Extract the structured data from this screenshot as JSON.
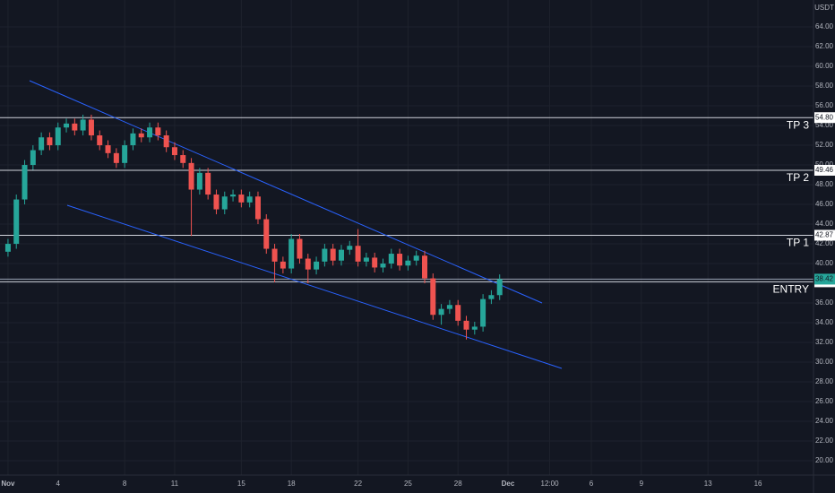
{
  "chart_data": {
    "type": "candlestick",
    "y_axis_label": "USDT",
    "x": [
      0,
      0.5,
      1,
      1.5,
      2,
      2.5,
      3,
      3.5,
      4,
      4.5,
      5,
      5.5,
      6,
      6.5,
      7,
      7.5,
      8,
      8.5,
      9,
      9.5,
      10,
      10.5,
      11,
      11.5,
      12,
      12.5,
      13,
      13.5,
      14,
      14.5,
      15,
      15.5,
      16,
      16.5,
      17,
      17.5,
      18,
      18.5,
      19,
      19.5,
      20,
      20.5,
      21,
      21.5,
      22,
      22.5,
      23,
      23.5,
      24,
      24.5,
      25,
      25.5,
      26,
      26.5,
      27,
      27.5,
      28,
      28.5,
      29,
      29.5
    ],
    "open": [
      41.2,
      42.0,
      46.5,
      50.0,
      51.5,
      52.8,
      52.0,
      53.8,
      54.2,
      53.5,
      54.6,
      53.0,
      52.0,
      51.2,
      50.2,
      52.0,
      53.2,
      52.8,
      53.8,
      53.0,
      51.8,
      51.0,
      50.2,
      47.5,
      49.2,
      47.0,
      45.5,
      46.8,
      47.0,
      46.2,
      46.8,
      44.5,
      41.5,
      40.2,
      39.5,
      42.5,
      40.5,
      39.4,
      40.2,
      41.5,
      40.3,
      41.4,
      41.8,
      40.2,
      40.6,
      39.6,
      40.0,
      41.0,
      39.8,
      40.3,
      40.8,
      38.5,
      34.8,
      35.4,
      35.8,
      34.2,
      33.3,
      33.6,
      36.4,
      36.8
    ],
    "high": [
      42.5,
      47.0,
      50.5,
      52.0,
      53.3,
      53.3,
      54.3,
      54.7,
      54.7,
      55.1,
      55.1,
      53.5,
      52.5,
      51.7,
      52.5,
      53.7,
      53.7,
      54.3,
      54.3,
      53.5,
      52.3,
      51.5,
      50.7,
      49.7,
      49.7,
      47.5,
      47.3,
      47.5,
      47.5,
      47.3,
      47.3,
      45.0,
      42.0,
      40.7,
      43.0,
      43.0,
      41.0,
      40.7,
      42.0,
      42.0,
      41.9,
      42.3,
      43.5,
      41.1,
      41.1,
      40.5,
      41.5,
      41.5,
      40.8,
      41.3,
      41.3,
      39.0,
      35.9,
      36.3,
      36.3,
      34.7,
      34.1,
      36.9,
      37.3,
      38.9
    ],
    "low": [
      40.7,
      41.5,
      46.0,
      49.5,
      51.0,
      51.5,
      51.5,
      53.3,
      53.0,
      53.0,
      52.5,
      51.5,
      50.7,
      49.7,
      49.7,
      51.5,
      52.3,
      52.3,
      52.5,
      51.3,
      50.5,
      49.7,
      42.8,
      47.0,
      46.5,
      45.0,
      45.0,
      46.3,
      45.7,
      45.7,
      44.0,
      41.0,
      38.1,
      39.0,
      39.0,
      40.0,
      38.0,
      38.9,
      39.7,
      39.8,
      39.8,
      40.9,
      39.7,
      39.7,
      39.1,
      39.1,
      39.5,
      39.3,
      39.3,
      39.8,
      38.0,
      34.3,
      33.8,
      34.9,
      33.7,
      32.3,
      32.8,
      33.1,
      35.9,
      36.3
    ],
    "close": [
      42.0,
      46.5,
      50.0,
      51.5,
      52.8,
      52.0,
      53.8,
      54.2,
      53.5,
      54.6,
      53.0,
      52.0,
      51.2,
      50.2,
      52.0,
      53.2,
      52.8,
      53.8,
      53.0,
      51.8,
      51.0,
      50.2,
      47.5,
      49.2,
      47.0,
      45.5,
      46.8,
      47.0,
      46.2,
      46.8,
      44.5,
      41.5,
      40.2,
      39.5,
      42.5,
      40.5,
      39.4,
      40.2,
      41.5,
      40.3,
      41.4,
      41.8,
      40.2,
      40.6,
      39.6,
      40.0,
      41.0,
      39.8,
      40.3,
      40.8,
      38.5,
      34.8,
      35.4,
      35.8,
      34.2,
      33.3,
      33.6,
      36.4,
      36.8,
      38.42
    ],
    "up_color": "#26a69a",
    "down_color": "#ef5350",
    "xlim": [
      -0.48,
      48.33
    ],
    "ylim": [
      18.55,
      66.73
    ],
    "xticks": [
      {
        "value": 0,
        "label": "Nov"
      },
      {
        "value": 3,
        "label": "4"
      },
      {
        "value": 7,
        "label": "8"
      },
      {
        "value": 10,
        "label": "11"
      },
      {
        "value": 14,
        "label": "15"
      },
      {
        "value": 17,
        "label": "18"
      },
      {
        "value": 21,
        "label": "22"
      },
      {
        "value": 24,
        "label": "25"
      },
      {
        "value": 27,
        "label": "28"
      },
      {
        "value": 30,
        "label": "Dec"
      },
      {
        "value": 32.5,
        "label": "12:00"
      },
      {
        "value": 35,
        "label": "6"
      },
      {
        "value": 38,
        "label": "9"
      },
      {
        "value": 42,
        "label": "13"
      },
      {
        "value": 45,
        "label": "16"
      }
    ],
    "yticks": [
      {
        "value": 20,
        "label": "20.00"
      },
      {
        "value": 22,
        "label": "22.00"
      },
      {
        "value": 24,
        "label": "24.00"
      },
      {
        "value": 26,
        "label": "26.00"
      },
      {
        "value": 28,
        "label": "28.00"
      },
      {
        "value": 30,
        "label": "30.00"
      },
      {
        "value": 32,
        "label": "32.00"
      },
      {
        "value": 34,
        "label": "34.00"
      },
      {
        "value": 36,
        "label": "36.00"
      },
      {
        "value": 38,
        "label": "38.00"
      },
      {
        "value": 40,
        "label": "40.00"
      },
      {
        "value": 42,
        "label": "42.00"
      },
      {
        "value": 44,
        "label": "44.00"
      },
      {
        "value": 46,
        "label": "46.00"
      },
      {
        "value": 48,
        "label": "48.00"
      },
      {
        "value": 50,
        "label": "50.00"
      },
      {
        "value": 52,
        "label": "52.00"
      },
      {
        "value": 54,
        "label": "54.00"
      },
      {
        "value": 56,
        "label": "56.00"
      },
      {
        "value": 58,
        "label": "58.00"
      },
      {
        "value": 60,
        "label": "60.00"
      },
      {
        "value": 62,
        "label": "62.00"
      },
      {
        "value": 64,
        "label": "64.00"
      }
    ],
    "grid": true,
    "levels": [
      {
        "name": "TP 3",
        "price": {
          "value": 54.8,
          "label": "54.80"
        }
      },
      {
        "name": "TP 2",
        "price": 49.46
      },
      {
        "name": "TP 1",
        "price": 42.87
      },
      {
        "name": "ENTRY",
        "price": 38.15
      }
    ],
    "last_price": 38.42,
    "last_price_color": "#26a69a"
  }
}
